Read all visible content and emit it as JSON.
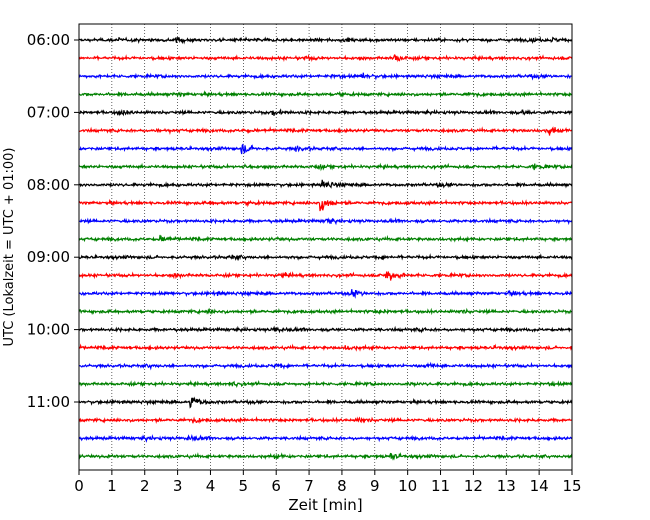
{
  "chart_data": {
    "type": "line",
    "title": "",
    "xlabel": "Zeit  [min]",
    "ylabel": "UTC (Lokalzeit = UTC + 01:00)",
    "xlim": [
      0,
      15
    ],
    "x_ticks": [
      0,
      1,
      2,
      3,
      4,
      5,
      6,
      7,
      8,
      9,
      10,
      11,
      12,
      13,
      14,
      15
    ],
    "x_tick_labels": [
      "0",
      "1",
      "2",
      "3",
      "4",
      "5",
      "6",
      "7",
      "8",
      "9",
      "10",
      "11",
      "12",
      "13",
      "14",
      "15"
    ],
    "y_tick_labels": [
      "06:00",
      "07:00",
      "08:00",
      "09:00",
      "10:00",
      "11:00"
    ],
    "y_tick_trace_index": [
      0,
      4,
      8,
      12,
      16,
      20
    ],
    "grid": "vertical dotted",
    "trace_interval_min": 15,
    "trace_colors": [
      "#000000",
      "#ff0000",
      "#0000ff",
      "#008000"
    ],
    "series": [
      {
        "start": "06:00",
        "color": "#000000",
        "events": [
          {
            "t": 1.2,
            "amp": 0.25
          },
          {
            "t": 2.95,
            "amp": 0.45
          },
          {
            "t": 5.4,
            "amp": 0.25
          },
          {
            "t": 13.7,
            "amp": 0.3
          },
          {
            "t": 14.4,
            "amp": 0.4
          }
        ]
      },
      {
        "start": "06:15",
        "color": "#ff0000",
        "events": [
          {
            "t": 9.6,
            "amp": 0.75
          },
          {
            "t": 6.9,
            "amp": 0.25
          }
        ]
      },
      {
        "start": "06:30",
        "color": "#0000ff",
        "events": [
          {
            "t": 8.6,
            "amp": 0.45
          },
          {
            "t": 7.7,
            "amp": 0.25
          },
          {
            "t": 13.7,
            "amp": 0.2
          }
        ]
      },
      {
        "start": "06:45",
        "color": "#008000",
        "events": [
          {
            "t": 3.0,
            "amp": 0.25
          },
          {
            "t": 7.9,
            "amp": 0.25
          },
          {
            "t": 11.8,
            "amp": 0.2
          }
        ]
      },
      {
        "start": "07:00",
        "color": "#000000",
        "events": [
          {
            "t": 1.2,
            "amp": 0.5
          },
          {
            "t": 5.9,
            "amp": 0.65
          },
          {
            "t": 13.5,
            "amp": 0.45
          }
        ]
      },
      {
        "start": "07:15",
        "color": "#ff0000",
        "events": [
          {
            "t": 14.3,
            "amp": 0.9
          },
          {
            "t": 5.0,
            "amp": 0.35
          },
          {
            "t": 2.3,
            "amp": 0.25
          }
        ]
      },
      {
        "start": "07:30",
        "color": "#0000ff",
        "events": [
          {
            "t": 4.95,
            "amp": 1.1
          },
          {
            "t": 6.6,
            "amp": 0.55
          },
          {
            "t": 12.5,
            "amp": 0.2
          }
        ]
      },
      {
        "start": "07:45",
        "color": "#008000",
        "events": [
          {
            "t": 5.0,
            "amp": 0.35
          },
          {
            "t": 7.2,
            "amp": 0.45
          },
          {
            "t": 13.8,
            "amp": 0.65
          }
        ]
      },
      {
        "start": "08:00",
        "color": "#000000",
        "events": [
          {
            "t": 7.4,
            "amp": 1.1
          },
          {
            "t": 10.9,
            "amp": 0.2
          }
        ]
      },
      {
        "start": "08:15",
        "color": "#ff0000",
        "events": [
          {
            "t": 7.35,
            "amp": 1.8
          },
          {
            "t": 5.1,
            "amp": 0.3
          },
          {
            "t": 4.0,
            "amp": 0.25
          }
        ]
      },
      {
        "start": "08:30",
        "color": "#0000ff",
        "events": [
          {
            "t": 7.5,
            "amp": 0.7
          }
        ]
      },
      {
        "start": "08:45",
        "color": "#008000",
        "events": [
          {
            "t": 2.45,
            "amp": 0.75
          },
          {
            "t": 6.0,
            "amp": 0.2
          }
        ]
      },
      {
        "start": "09:00",
        "color": "#000000",
        "events": [
          {
            "t": 4.6,
            "amp": 0.45
          },
          {
            "t": 9.2,
            "amp": 0.3
          }
        ]
      },
      {
        "start": "09:15",
        "color": "#ff0000",
        "events": [
          {
            "t": 9.35,
            "amp": 1.7
          },
          {
            "t": 6.1,
            "amp": 0.45
          },
          {
            "t": 2.9,
            "amp": 0.3
          }
        ]
      },
      {
        "start": "09:30",
        "color": "#0000ff",
        "events": [
          {
            "t": 8.3,
            "amp": 0.8
          },
          {
            "t": 4.1,
            "amp": 0.35
          },
          {
            "t": 13.1,
            "amp": 0.45
          }
        ]
      },
      {
        "start": "09:45",
        "color": "#008000",
        "events": [
          {
            "t": 3.9,
            "amp": 0.3
          },
          {
            "t": 9.1,
            "amp": 0.25
          },
          {
            "t": 11.6,
            "amp": 0.25
          }
        ]
      },
      {
        "start": "10:00",
        "color": "#000000",
        "events": [
          {
            "t": 5.95,
            "amp": 0.6
          },
          {
            "t": 10.3,
            "amp": 0.2
          }
        ]
      },
      {
        "start": "10:15",
        "color": "#ff0000",
        "events": [
          {
            "t": 8.1,
            "amp": 0.4
          },
          {
            "t": 12.6,
            "amp": 0.2
          }
        ]
      },
      {
        "start": "10:30",
        "color": "#0000ff",
        "events": [
          {
            "t": 5.95,
            "amp": 0.45
          },
          {
            "t": 10.6,
            "amp": 0.4
          },
          {
            "t": 2.1,
            "amp": 0.25
          }
        ]
      },
      {
        "start": "10:45",
        "color": "#008000",
        "events": [
          {
            "t": 4.6,
            "amp": 0.45
          },
          {
            "t": 10.0,
            "amp": 0.25
          },
          {
            "t": 14.3,
            "amp": 0.2
          }
        ]
      },
      {
        "start": "11:00",
        "color": "#000000",
        "events": [
          {
            "t": 3.4,
            "amp": 1.7
          },
          {
            "t": 1.1,
            "amp": 0.2
          }
        ]
      },
      {
        "start": "11:15",
        "color": "#ff0000",
        "events": [
          {
            "t": 8.5,
            "amp": 0.45
          },
          {
            "t": 3.45,
            "amp": 0.35
          }
        ]
      },
      {
        "start": "11:30",
        "color": "#0000ff",
        "events": [
          {
            "t": 3.3,
            "amp": 0.55
          },
          {
            "t": 2.0,
            "amp": 0.3
          }
        ]
      },
      {
        "start": "11:45",
        "color": "#008000",
        "events": [
          {
            "t": 9.5,
            "amp": 0.6
          },
          {
            "t": 5.95,
            "amp": 0.4
          },
          {
            "t": 0.9,
            "amp": 0.25
          }
        ]
      }
    ]
  }
}
